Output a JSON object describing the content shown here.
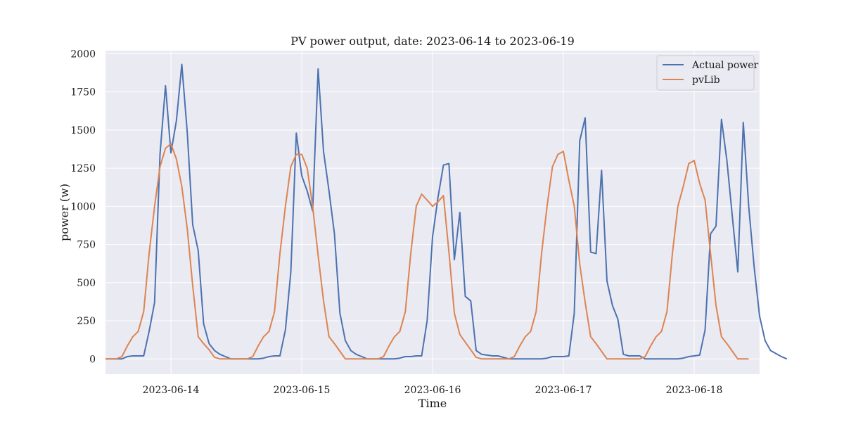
{
  "chart_data": {
    "type": "line",
    "title": "PV power output, date: 2023-06-14 to 2023-06-19",
    "xlabel": "Time",
    "ylabel": "power (w)",
    "x_start": "2023-06-13T12:00",
    "x_step_hours": 1,
    "xlim": [
      "2023-06-13T12:00",
      "2023-06-18T12:00"
    ],
    "ylim": [
      -100,
      2020
    ],
    "x_ticks": [
      "2023-06-14",
      "2023-06-15",
      "2023-06-16",
      "2023-06-17",
      "2023-06-18"
    ],
    "y_ticks": [
      0,
      250,
      500,
      750,
      1000,
      1250,
      1500,
      1750,
      2000
    ],
    "grid": true,
    "legend_position": "top-right",
    "colors": {
      "background": "#eaeaf2",
      "grid": "#ffffff",
      "actual": "#4c72b0",
      "pvlib": "#dd8452"
    },
    "series": [
      {
        "name": "Actual power",
        "color": "#4c72b0",
        "values": [
          0,
          0,
          0,
          0,
          15,
          20,
          20,
          20,
          180,
          370,
          1340,
          1790,
          1350,
          1560,
          1930,
          1480,
          880,
          710,
          230,
          100,
          55,
          30,
          15,
          0,
          0,
          0,
          0,
          0,
          0,
          5,
          15,
          20,
          20,
          190,
          570,
          1480,
          1200,
          1100,
          970,
          1900,
          1360,
          1100,
          820,
          300,
          120,
          55,
          30,
          15,
          0,
          0,
          0,
          0,
          0,
          0,
          5,
          15,
          15,
          20,
          20,
          250,
          800,
          1060,
          1270,
          1280,
          650,
          960,
          410,
          380,
          55,
          30,
          25,
          20,
          20,
          10,
          0,
          0,
          0,
          0,
          0,
          0,
          0,
          5,
          15,
          15,
          15,
          20,
          300,
          1430,
          1580,
          700,
          690,
          1235,
          510,
          350,
          260,
          30,
          20,
          20,
          20,
          0,
          0,
          0,
          0,
          0,
          0,
          0,
          5,
          15,
          20,
          25,
          190,
          820,
          870,
          1570,
          1300,
          930,
          570,
          1550,
          1000,
          600,
          280,
          120,
          55,
          35,
          15,
          0
        ],
        "style": "solid"
      },
      {
        "name": "pvLib",
        "color": "#dd8452",
        "values": [
          0,
          0,
          0,
          15,
          85,
          145,
          180,
          310,
          690,
          1000,
          1260,
          1380,
          1410,
          1310,
          1130,
          850,
          480,
          145,
          100,
          60,
          10,
          0,
          0,
          0,
          0,
          0,
          0,
          15,
          85,
          145,
          180,
          310,
          690,
          1000,
          1260,
          1340,
          1340,
          1250,
          1000,
          680,
          380,
          145,
          100,
          50,
          0,
          0,
          0,
          0,
          0,
          0,
          0,
          15,
          85,
          145,
          180,
          310,
          690,
          1000,
          1080,
          1040,
          1000,
          1030,
          1070,
          700,
          300,
          160,
          110,
          60,
          10,
          0,
          0,
          0,
          0,
          0,
          0,
          15,
          85,
          145,
          180,
          310,
          690,
          1000,
          1260,
          1340,
          1360,
          1170,
          1000,
          620,
          370,
          145,
          100,
          50,
          0,
          0,
          0,
          0,
          0,
          0,
          0,
          15,
          85,
          145,
          180,
          310,
          690,
          1000,
          1130,
          1280,
          1300,
          1150,
          1040,
          690,
          350,
          145,
          100,
          50,
          0,
          0,
          0
        ]
      }
    ]
  }
}
